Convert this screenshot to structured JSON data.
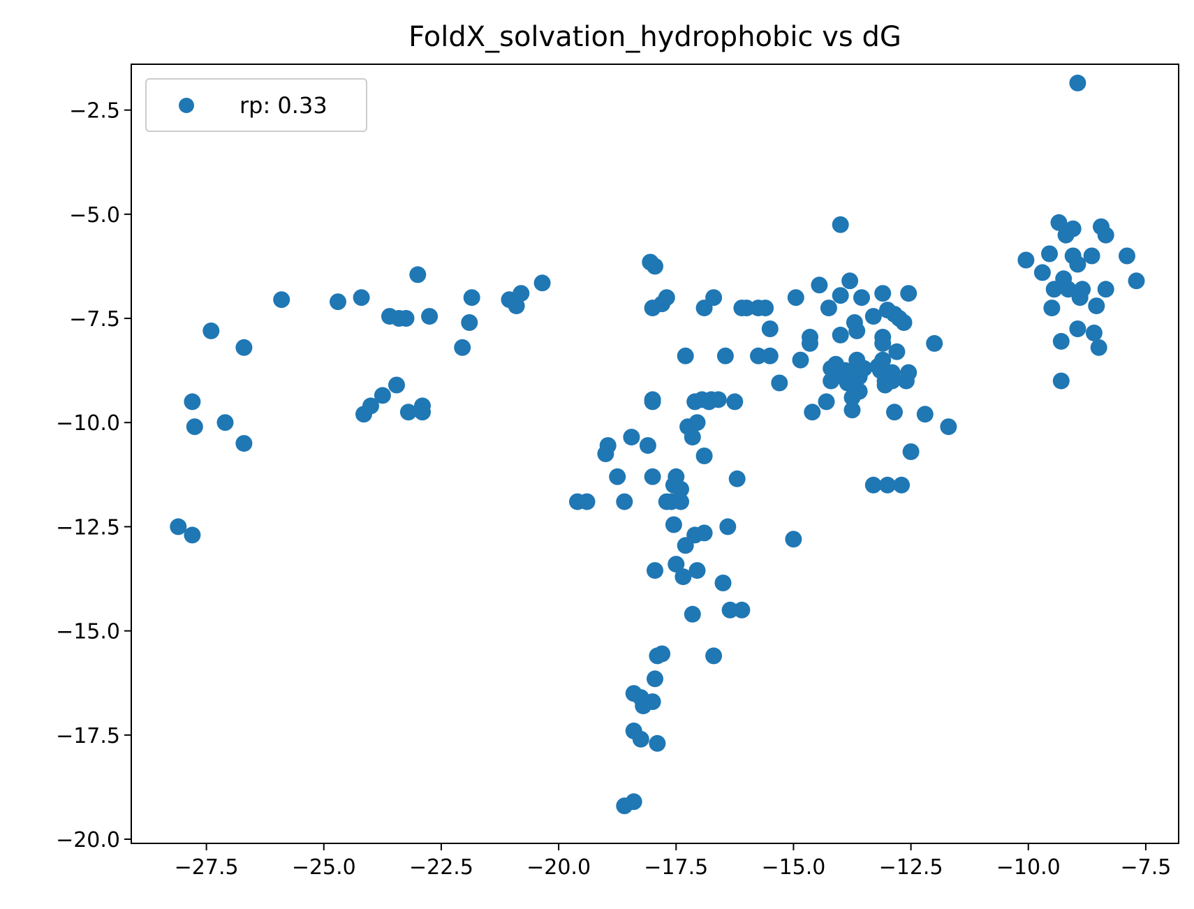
{
  "chart_data": {
    "type": "scatter",
    "title": "FoldX_solvation_hydrophobic vs dG",
    "xlabel": "",
    "ylabel": "",
    "xlim": [
      -29.1,
      -6.8
    ],
    "ylim": [
      -20.1,
      -1.4
    ],
    "x_ticks": [
      -27.5,
      -25.0,
      -22.5,
      -20.0,
      -17.5,
      -15.0,
      -12.5,
      -10.0,
      -7.5
    ],
    "x_tick_labels": [
      "−27.5",
      "−25.0",
      "−22.5",
      "−20.0",
      "−17.5",
      "−15.0",
      "−12.5",
      "−10.0",
      "−7.5"
    ],
    "y_ticks": [
      -2.5,
      -5.0,
      -7.5,
      -10.0,
      -12.5,
      -15.0,
      -17.5,
      -20.0
    ],
    "y_tick_labels": [
      "−2.5",
      "−5.0",
      "−7.5",
      "−10.0",
      "−12.5",
      "−15.0",
      "−17.5",
      "−20.0"
    ],
    "grid": false,
    "legend_position": "top-left",
    "color": "#1f77b4",
    "series": [
      {
        "name": "rp: 0.33",
        "points": [
          [
            -28.1,
            -12.5
          ],
          [
            -27.8,
            -12.7
          ],
          [
            -27.8,
            -9.5
          ],
          [
            -27.75,
            -10.1
          ],
          [
            -27.4,
            -7.8
          ],
          [
            -27.1,
            -10.0
          ],
          [
            -26.7,
            -8.2
          ],
          [
            -26.7,
            -10.5
          ],
          [
            -25.9,
            -7.05
          ],
          [
            -24.7,
            -7.1
          ],
          [
            -24.2,
            -7.0
          ],
          [
            -24.15,
            -9.8
          ],
          [
            -24.0,
            -9.6
          ],
          [
            -23.75,
            -9.35
          ],
          [
            -23.6,
            -7.45
          ],
          [
            -23.4,
            -7.5
          ],
          [
            -23.45,
            -9.1
          ],
          [
            -23.25,
            -7.5
          ],
          [
            -23.2,
            -9.75
          ],
          [
            -23.0,
            -6.45
          ],
          [
            -22.9,
            -9.6
          ],
          [
            -22.9,
            -9.75
          ],
          [
            -22.75,
            -7.45
          ],
          [
            -22.05,
            -8.2
          ],
          [
            -21.9,
            -7.6
          ],
          [
            -21.85,
            -7.0
          ],
          [
            -21.05,
            -7.05
          ],
          [
            -20.9,
            -7.2
          ],
          [
            -20.8,
            -6.9
          ],
          [
            -20.35,
            -6.65
          ],
          [
            -19.6,
            -11.9
          ],
          [
            -19.4,
            -11.9
          ],
          [
            -19.0,
            -10.75
          ],
          [
            -18.95,
            -10.55
          ],
          [
            -18.75,
            -11.3
          ],
          [
            -18.6,
            -11.9
          ],
          [
            -18.6,
            -19.2
          ],
          [
            -18.4,
            -19.1
          ],
          [
            -18.45,
            -10.35
          ],
          [
            -18.4,
            -16.5
          ],
          [
            -18.4,
            -17.4
          ],
          [
            -18.25,
            -16.6
          ],
          [
            -18.2,
            -16.8
          ],
          [
            -18.25,
            -17.6
          ],
          [
            -18.1,
            -10.55
          ],
          [
            -18.05,
            -6.15
          ],
          [
            -17.95,
            -6.25
          ],
          [
            -18.0,
            -7.25
          ],
          [
            -18.0,
            -9.45
          ],
          [
            -18.0,
            -9.5
          ],
          [
            -18.0,
            -11.3
          ],
          [
            -18.0,
            -16.7
          ],
          [
            -17.95,
            -13.55
          ],
          [
            -17.95,
            -16.15
          ],
          [
            -17.9,
            -17.7
          ],
          [
            -17.9,
            -15.6
          ],
          [
            -17.8,
            -15.55
          ],
          [
            -17.8,
            -7.15
          ],
          [
            -17.7,
            -7.0
          ],
          [
            -17.7,
            -11.9
          ],
          [
            -17.6,
            -11.9
          ],
          [
            -17.55,
            -11.5
          ],
          [
            -17.55,
            -12.45
          ],
          [
            -17.5,
            -11.3
          ],
          [
            -17.5,
            -13.4
          ],
          [
            -17.4,
            -11.6
          ],
          [
            -17.4,
            -11.9
          ],
          [
            -17.35,
            -13.7
          ],
          [
            -17.3,
            -12.95
          ],
          [
            -17.3,
            -8.4
          ],
          [
            -17.25,
            -10.1
          ],
          [
            -17.15,
            -10.35
          ],
          [
            -17.15,
            -14.6
          ],
          [
            -17.1,
            -12.7
          ],
          [
            -17.1,
            -9.5
          ],
          [
            -17.05,
            -10.0
          ],
          [
            -17.05,
            -13.55
          ],
          [
            -16.95,
            -9.45
          ],
          [
            -16.9,
            -7.25
          ],
          [
            -16.9,
            -10.8
          ],
          [
            -16.9,
            -12.65
          ],
          [
            -16.8,
            -9.5
          ],
          [
            -16.75,
            -9.45
          ],
          [
            -16.7,
            -7.0
          ],
          [
            -16.7,
            -15.6
          ],
          [
            -16.6,
            -9.45
          ],
          [
            -16.5,
            -13.85
          ],
          [
            -16.45,
            -8.4
          ],
          [
            -16.4,
            -12.5
          ],
          [
            -16.35,
            -14.5
          ],
          [
            -16.25,
            -9.5
          ],
          [
            -16.2,
            -11.35
          ],
          [
            -16.1,
            -14.5
          ],
          [
            -16.1,
            -7.25
          ],
          [
            -16.0,
            -7.25
          ],
          [
            -15.75,
            -8.4
          ],
          [
            -15.75,
            -7.25
          ],
          [
            -15.6,
            -7.25
          ],
          [
            -15.5,
            -7.75
          ],
          [
            -15.5,
            -8.4
          ],
          [
            -15.3,
            -9.05
          ],
          [
            -15.0,
            -12.8
          ],
          [
            -14.95,
            -7.0
          ],
          [
            -14.85,
            -8.5
          ],
          [
            -14.65,
            -7.95
          ],
          [
            -14.65,
            -8.1
          ],
          [
            -14.6,
            -9.75
          ],
          [
            -14.45,
            -6.7
          ],
          [
            -14.3,
            -9.5
          ],
          [
            -14.25,
            -7.25
          ],
          [
            -14.2,
            -8.7
          ],
          [
            -14.2,
            -9.0
          ],
          [
            -14.1,
            -8.6
          ],
          [
            -14.05,
            -8.8
          ],
          [
            -14.0,
            -5.25
          ],
          [
            -14.0,
            -6.95
          ],
          [
            -14.0,
            -7.9
          ],
          [
            -13.95,
            -8.9
          ],
          [
            -13.9,
            -8.75
          ],
          [
            -13.85,
            -9.05
          ],
          [
            -13.8,
            -6.6
          ],
          [
            -13.8,
            -8.8
          ],
          [
            -13.75,
            -9.4
          ],
          [
            -13.75,
            -9.7
          ],
          [
            -13.7,
            -7.6
          ],
          [
            -13.7,
            -8.75
          ],
          [
            -13.65,
            -7.8
          ],
          [
            -13.65,
            -8.5
          ],
          [
            -13.6,
            -9.25
          ],
          [
            -13.6,
            -8.9
          ],
          [
            -13.55,
            -7.0
          ],
          [
            -13.5,
            -8.7
          ],
          [
            -13.3,
            -7.45
          ],
          [
            -13.2,
            -8.65
          ],
          [
            -13.15,
            -8.75
          ],
          [
            -13.1,
            -7.95
          ],
          [
            -13.1,
            -8.1
          ],
          [
            -13.1,
            -8.5
          ],
          [
            -13.1,
            -6.9
          ],
          [
            -13.05,
            -9.0
          ],
          [
            -13.05,
            -9.1
          ],
          [
            -13.0,
            -7.3
          ],
          [
            -12.9,
            -8.8
          ],
          [
            -12.9,
            -9.0
          ],
          [
            -12.85,
            -9.75
          ],
          [
            -12.85,
            -7.4
          ],
          [
            -12.8,
            -8.3
          ],
          [
            -12.75,
            -7.5
          ],
          [
            -12.65,
            -7.6
          ],
          [
            -12.6,
            -9.0
          ],
          [
            -12.55,
            -8.8
          ],
          [
            -12.5,
            -10.7
          ],
          [
            -12.55,
            -6.9
          ],
          [
            -13.3,
            -11.5
          ],
          [
            -13.0,
            -11.5
          ],
          [
            -12.7,
            -11.5
          ],
          [
            -12.2,
            -9.8
          ],
          [
            -12.0,
            -8.1
          ],
          [
            -11.7,
            -10.1
          ],
          [
            -10.05,
            -6.1
          ],
          [
            -9.7,
            -6.4
          ],
          [
            -9.55,
            -5.95
          ],
          [
            -9.5,
            -7.25
          ],
          [
            -9.45,
            -6.8
          ],
          [
            -9.35,
            -5.2
          ],
          [
            -9.3,
            -8.05
          ],
          [
            -9.3,
            -9.0
          ],
          [
            -9.25,
            -6.55
          ],
          [
            -9.2,
            -5.5
          ],
          [
            -9.15,
            -6.8
          ],
          [
            -9.05,
            -5.35
          ],
          [
            -9.05,
            -6.0
          ],
          [
            -8.95,
            -6.2
          ],
          [
            -8.95,
            -7.75
          ],
          [
            -8.9,
            -7.0
          ],
          [
            -8.85,
            -6.8
          ],
          [
            -8.95,
            -1.85
          ],
          [
            -8.65,
            -6.0
          ],
          [
            -8.6,
            -7.85
          ],
          [
            -8.55,
            -7.2
          ],
          [
            -8.5,
            -8.2
          ],
          [
            -8.45,
            -5.3
          ],
          [
            -8.35,
            -5.5
          ],
          [
            -8.35,
            -6.8
          ],
          [
            -7.9,
            -6.0
          ],
          [
            -7.7,
            -6.6
          ]
        ]
      }
    ]
  }
}
